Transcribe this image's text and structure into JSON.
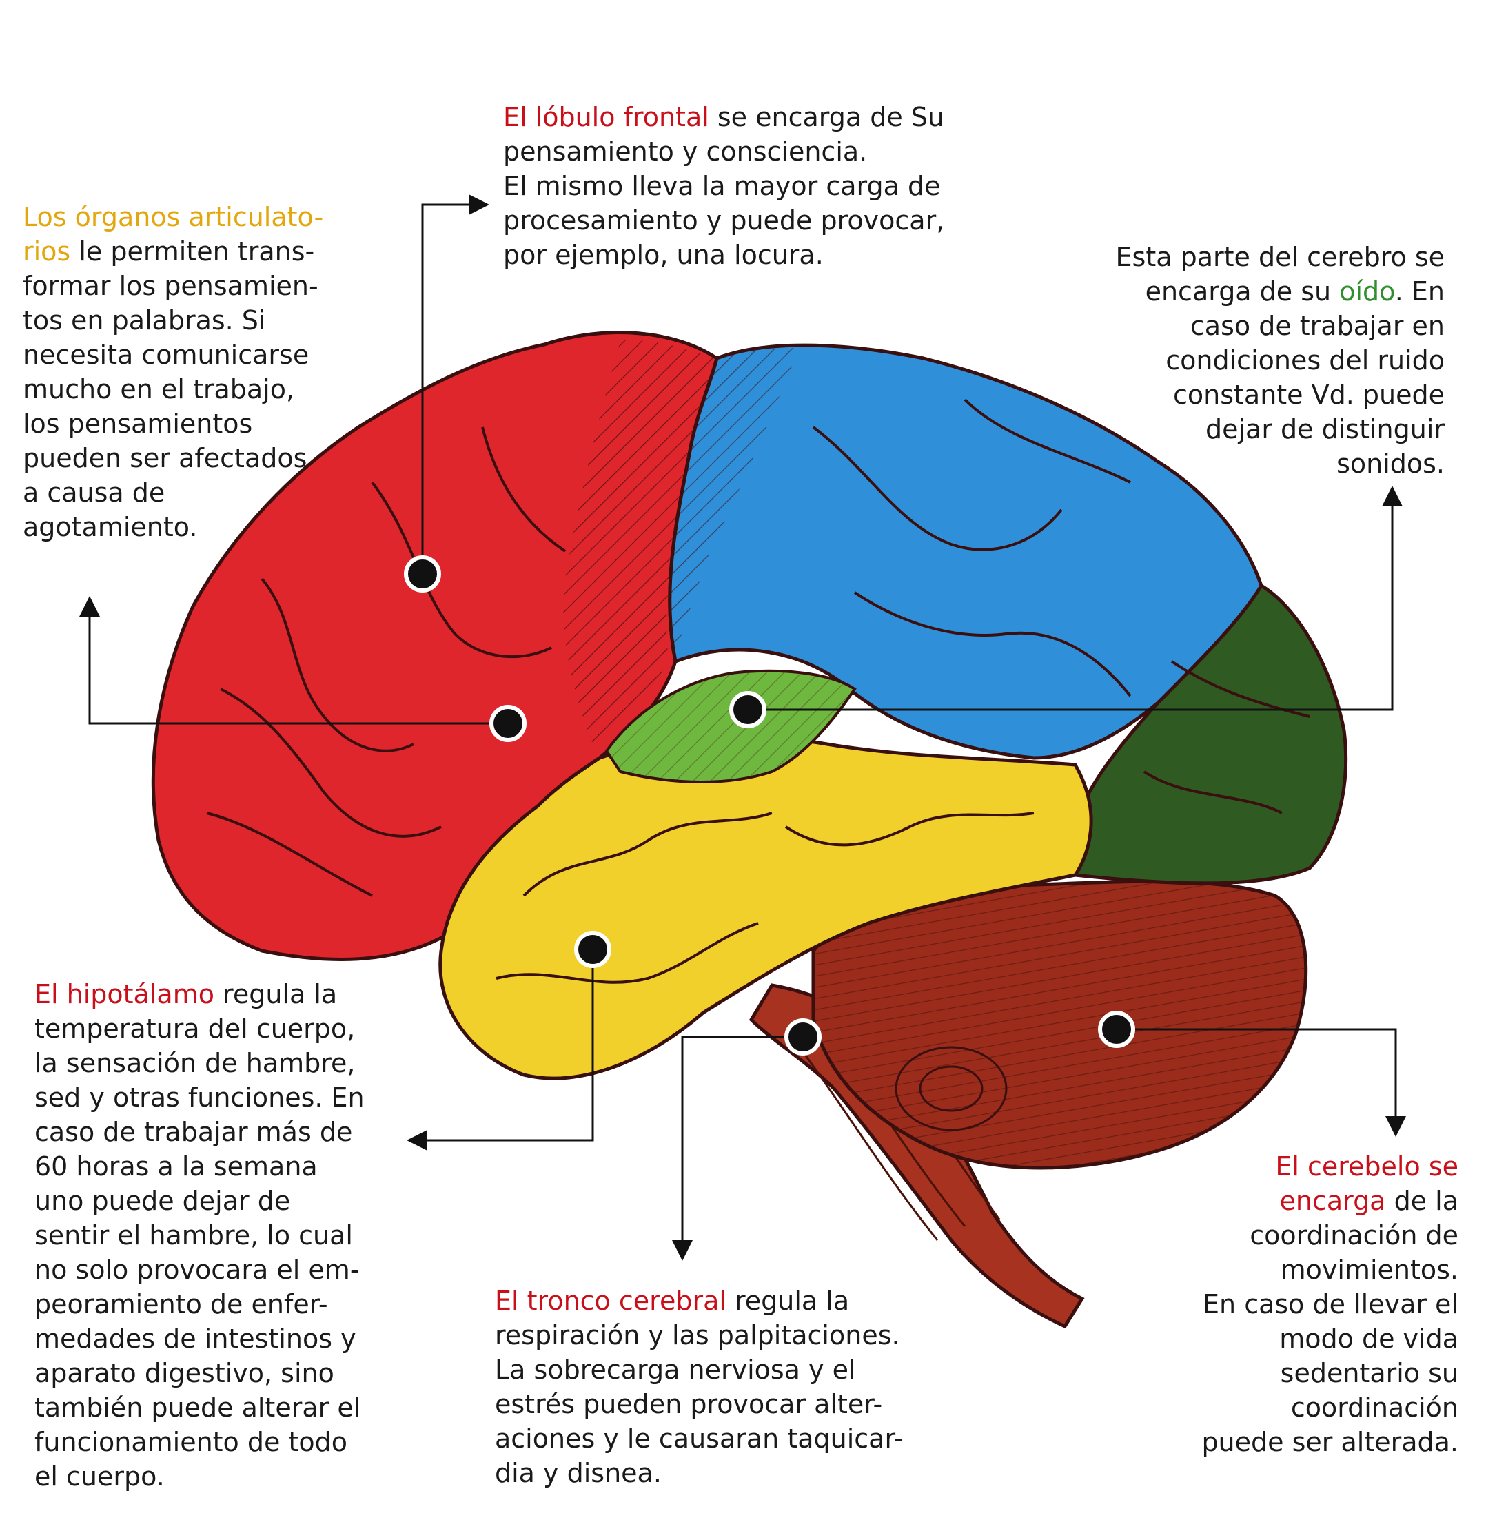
{
  "colors": {
    "frontal_red": "#e0262d",
    "parietal_blue": "#2f8fd8",
    "temporal_yellow": "#f2d02c",
    "auditory_green": "#6fb83f",
    "occipital_darkgreen": "#2f5a22",
    "cerebellum_brown": "#9b2c1c",
    "sulcus_line": "#3a0f0f",
    "highlight_red": "#c8101a",
    "highlight_gold": "#e3a70e",
    "highlight_green": "#2f8f2f"
  },
  "captions": {
    "frontal": {
      "title": "El lóbulo frontal",
      "lines": [
        " se encarga de Su",
        "pensamiento y consciencia.",
        "El mismo lleva la mayor carga de",
        "procesamiento y puede provocar,",
        "por ejemplo, una locura."
      ]
    },
    "articulatory": {
      "title_line1": "Los órganos articulato-",
      "title_line2": "rios",
      "lines": [
        " le permiten trans-",
        "formar los pensamien-",
        "tos en palabras. Si",
        "necesita comunicarse",
        "mucho en el trabajo,",
        "los pensamientos",
        "pueden ser afectados",
        "a causa de",
        "agotamiento."
      ]
    },
    "hearing": {
      "line1": "Esta parte del cerebro se",
      "line2_pre": "encarga de su ",
      "highlight": "oído",
      "line2_post": ". En",
      "lines": [
        "caso de trabajar en",
        "condiciones del ruido",
        "constante Vd. puede",
        "dejar de distinguir",
        "sonidos."
      ]
    },
    "hypothalamus": {
      "title": "El hipotálamo",
      "lines": [
        " regula la",
        "temperatura del cuerpo,",
        "la sensación de hambre,",
        "sed y otras funciones. En",
        "caso de trabajar más de",
        "60 horas a la semana",
        "uno puede dejar de",
        "sentir el hambre, lo cual",
        "no solo provocara el em-",
        "peoramiento de enfer-",
        "medades de intestinos y",
        "aparato digestivo, sino",
        "también puede alterar el",
        "funcionamiento de todo",
        "el cuerpo."
      ]
    },
    "brainstem": {
      "title": "El tronco cerebral",
      "lines": [
        " regula la",
        "respiración y las palpitaciones.",
        "La sobrecarga nerviosa y el",
        "estrés pueden provocar alter-",
        "aciones y le causaran taquicar-",
        "dia y disnea."
      ]
    },
    "cerebellum": {
      "title_line1": "El cerebelo se",
      "title_line2": "encarga",
      "lines": [
        " de la",
        "coordinación de",
        "movimientos.",
        "En caso de llevar el",
        "modo de vida",
        "sedentario su",
        "coordinación",
        "puede ser alterada."
      ]
    }
  }
}
